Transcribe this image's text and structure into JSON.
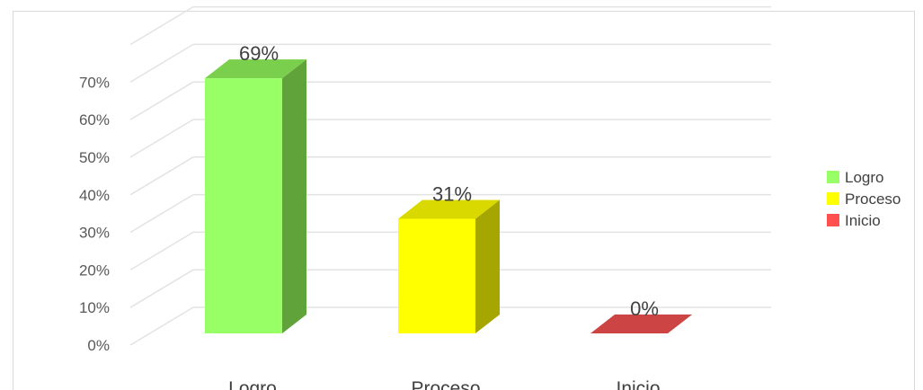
{
  "chart_data": {
    "type": "bar",
    "style": "3d-column",
    "categories": [
      "Logro",
      "Proceso",
      "Inicio"
    ],
    "values": [
      69,
      31,
      0
    ],
    "value_suffix": "%",
    "data_labels": [
      "69%",
      "31%",
      "0%"
    ],
    "colors": [
      "#99ff66",
      "#ffff00",
      "#ff5050"
    ],
    "side_colors": [
      "#5fa33a",
      "#a6a600",
      "#b33a3a"
    ],
    "top_colors": [
      "#7ad04d",
      "#d9d900",
      "#cc4444"
    ],
    "yticks": [
      "0%",
      "10%",
      "20%",
      "30%",
      "40%",
      "50%",
      "60%",
      "70%"
    ],
    "ylim": [
      0,
      70
    ],
    "grid": true,
    "legend": {
      "position": "right",
      "entries": [
        "Logro",
        "Proceso",
        "Inicio"
      ]
    }
  }
}
